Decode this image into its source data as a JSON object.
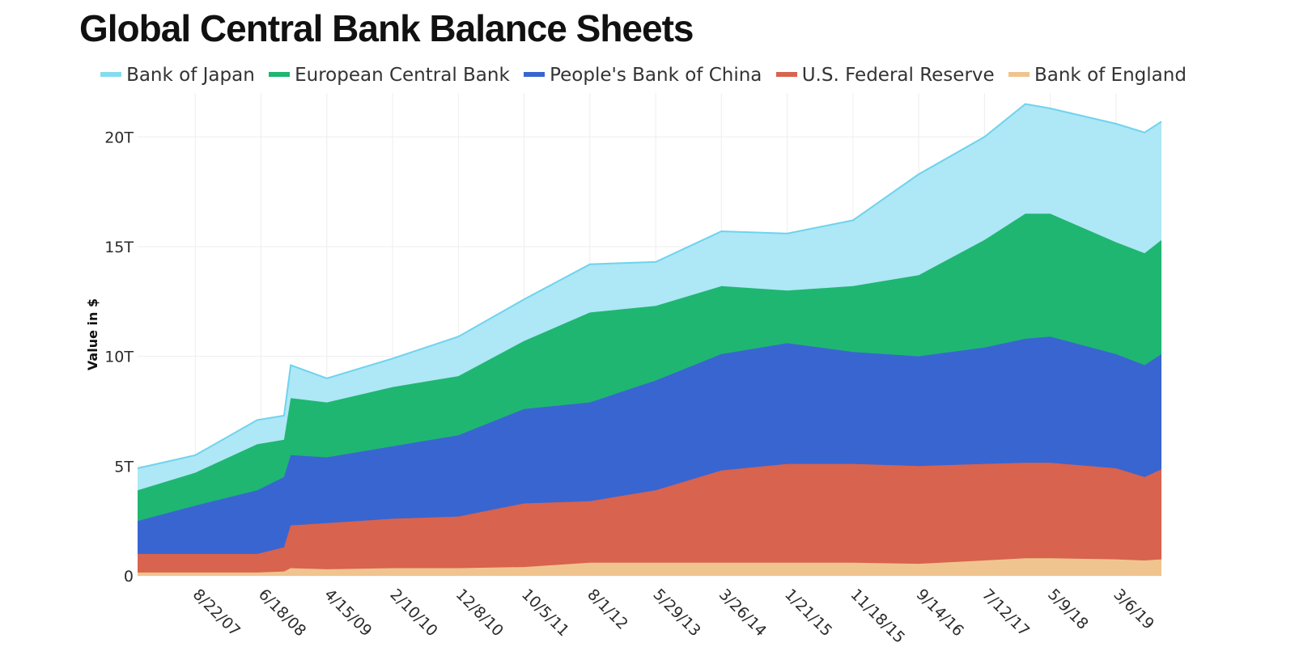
{
  "title": "Global Central Bank Balance Sheets",
  "legend": [
    {
      "label": "Bank of Japan",
      "color": "#84dcf0"
    },
    {
      "label": "European Central Bank",
      "color": "#1fb672"
    },
    {
      "label": "People's Bank of China",
      "color": "#3965d1"
    },
    {
      "label": "U.S. Federal Reserve",
      "color": "#d8634e"
    },
    {
      "label": "Bank of England",
      "color": "#f0c48e"
    }
  ],
  "chart_data": {
    "type": "area",
    "stacked": true,
    "title": "Global Central Bank Balance Sheets",
    "xlabel": "",
    "ylabel": "Value in $",
    "ylim": [
      0,
      22
    ],
    "y_ticks": [
      0,
      5,
      10,
      15,
      20
    ],
    "y_tick_labels": [
      "0",
      "5T",
      "10T",
      "15T",
      "20T"
    ],
    "x_tick_labels": [
      "8/22/07",
      "6/18/08",
      "4/15/09",
      "2/10/10",
      "12/8/10",
      "10/5/11",
      "8/1/12",
      "5/29/13",
      "3/26/14",
      "1/21/15",
      "11/18/15",
      "9/14/16",
      "7/12/17",
      "5/9/18",
      "3/6/19"
    ],
    "x_range": [
      "12/1/06",
      "9/30/19"
    ],
    "grid": true,
    "legend_position": "top",
    "unit": "trillion USD (cumulative stacked totals)",
    "x": [
      "12/1/06",
      "8/22/07",
      "6/1/08",
      "10/1/08",
      "11/1/08",
      "4/15/09",
      "2/10/10",
      "12/8/10",
      "10/5/11",
      "8/1/12",
      "5/29/13",
      "3/26/14",
      "1/21/15",
      "11/18/15",
      "9/14/16",
      "7/12/17",
      "1/15/18",
      "5/9/18",
      "3/6/19",
      "7/15/19",
      "9/30/19"
    ],
    "series": [
      {
        "name": "Bank of England",
        "color": "#f0c48e",
        "values": [
          0.15,
          0.15,
          0.15,
          0.2,
          0.35,
          0.3,
          0.35,
          0.35,
          0.4,
          0.6,
          0.6,
          0.6,
          0.6,
          0.6,
          0.55,
          0.7,
          0.8,
          0.8,
          0.75,
          0.7,
          0.75
        ]
      },
      {
        "name": "U.S. Federal Reserve",
        "color": "#d8634e",
        "values": [
          1.0,
          1.0,
          1.0,
          1.3,
          2.3,
          2.4,
          2.6,
          2.7,
          3.3,
          3.4,
          3.9,
          4.8,
          5.1,
          5.1,
          5.0,
          5.1,
          5.15,
          5.15,
          4.9,
          4.5,
          4.85
        ]
      },
      {
        "name": "People's Bank of China",
        "color": "#3965d1",
        "values": [
          2.5,
          3.2,
          3.9,
          4.5,
          5.5,
          5.4,
          5.9,
          6.4,
          7.6,
          7.9,
          8.9,
          10.1,
          10.6,
          10.2,
          10.0,
          10.4,
          10.8,
          10.9,
          10.1,
          9.6,
          10.1
        ]
      },
      {
        "name": "European Central Bank",
        "color": "#1fb672",
        "values": [
          3.9,
          4.7,
          6.0,
          6.2,
          8.1,
          7.9,
          8.6,
          9.1,
          10.7,
          12.0,
          12.3,
          13.2,
          13.0,
          13.2,
          13.7,
          15.3,
          16.5,
          16.5,
          15.2,
          14.7,
          15.3
        ]
      },
      {
        "name": "Bank of Japan",
        "color": "#84dcf0",
        "values": [
          4.9,
          5.5,
          7.1,
          7.3,
          9.6,
          9.0,
          9.9,
          10.9,
          12.6,
          14.2,
          14.3,
          15.7,
          15.6,
          16.2,
          18.3,
          20.0,
          21.5,
          21.3,
          20.6,
          20.2,
          20.7
        ]
      }
    ]
  }
}
